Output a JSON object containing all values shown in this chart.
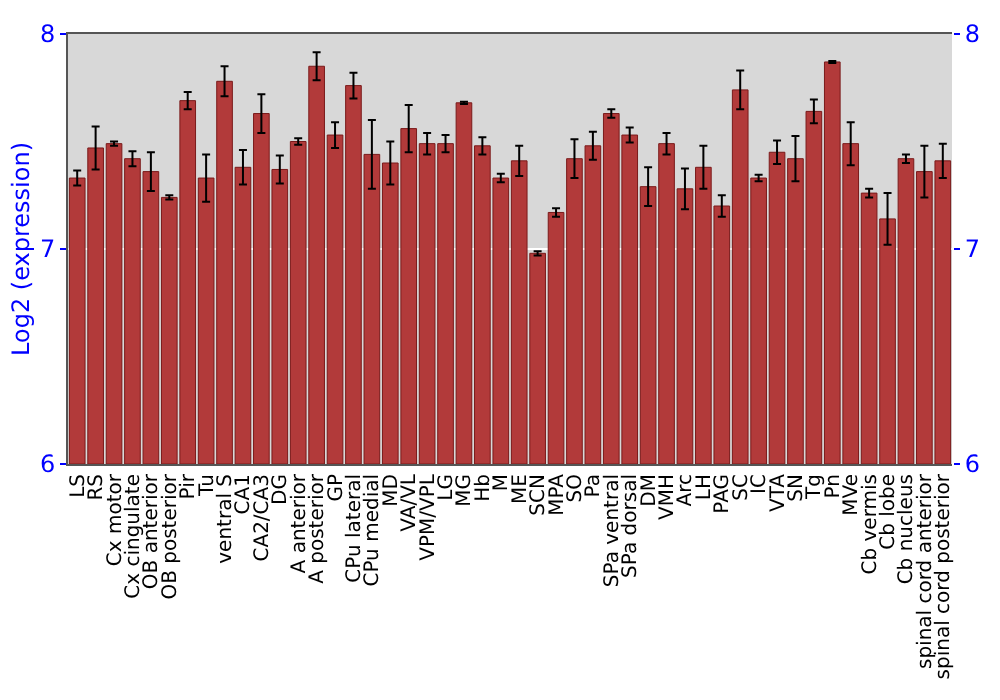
{
  "chart_data": {
    "type": "bar",
    "ylabel": "Log2 (expression)",
    "categories": [
      "LS",
      "RS",
      "Cx motor",
      "Cx cingulate",
      "OB anterior",
      "OB posterior",
      "Pir",
      "Tu",
      "ventral S",
      "CA1",
      "CA2/CA3",
      "DG",
      "A anterior",
      "A posterior",
      "GP",
      "CPu lateral",
      "CPu medial",
      "MD",
      "VA/VL",
      "VPM/VPL",
      "LG",
      "MG",
      "Hb",
      "M",
      "ME",
      "SCN",
      "MPA",
      "SO",
      "Pa",
      "SPa ventral",
      "SPa dorsal",
      "DM",
      "VMH",
      "Arc",
      "LH",
      "PAG",
      "SC",
      "IC",
      "VTA",
      "SN",
      "Tg",
      "Pn",
      "MVe",
      "Cb vermis",
      "Cb lobe",
      "Cb nucleus",
      "spinal cord anterior",
      "spinal cord posterior"
    ],
    "values": [
      7.33,
      7.47,
      7.49,
      7.42,
      7.36,
      7.24,
      7.69,
      7.33,
      7.78,
      7.38,
      7.63,
      7.37,
      7.5,
      7.85,
      7.53,
      7.76,
      7.44,
      7.4,
      7.56,
      7.49,
      7.49,
      7.68,
      7.48,
      7.33,
      7.41,
      6.98,
      7.17,
      7.42,
      7.48,
      7.63,
      7.53,
      7.29,
      7.49,
      7.28,
      7.38,
      7.2,
      7.74,
      7.33,
      7.45,
      7.42,
      7.64,
      7.87,
      7.49,
      7.26,
      7.14,
      7.42,
      7.36,
      7.41
    ],
    "errors": [
      0.035,
      0.1,
      0.01,
      0.035,
      0.09,
      0.01,
      0.04,
      0.11,
      0.07,
      0.08,
      0.09,
      0.065,
      0.015,
      0.065,
      0.06,
      0.06,
      0.16,
      0.1,
      0.11,
      0.05,
      0.04,
      0.005,
      0.04,
      0.02,
      0.07,
      0.01,
      0.02,
      0.09,
      0.065,
      0.02,
      0.035,
      0.09,
      0.05,
      0.095,
      0.1,
      0.05,
      0.09,
      0.015,
      0.055,
      0.105,
      0.055,
      0.005,
      0.1,
      0.02,
      0.12,
      0.02,
      0.12,
      0.08
    ],
    "color": "#b23a3a",
    "ylim": [
      6,
      8
    ],
    "yticks": [
      6,
      7,
      8
    ],
    "y2lim": [
      6,
      8
    ],
    "y2ticks": [
      6,
      7,
      8
    ],
    "grid": "y",
    "legend": false
  }
}
